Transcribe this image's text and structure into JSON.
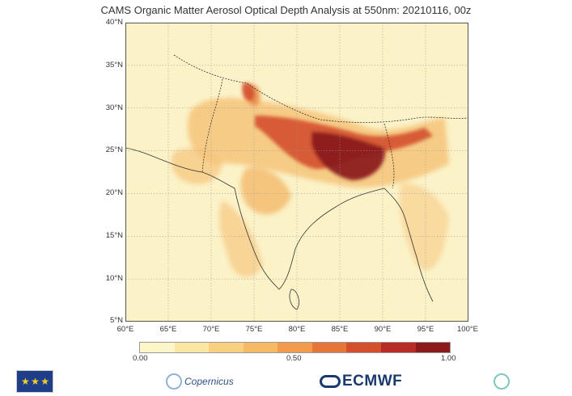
{
  "title": "CAMS Organic Matter Aerosol Optical Depth Analysis at 550nm: 20210116, 00z",
  "map": {
    "lat_labels": [
      "40°N",
      "35°N",
      "30°N",
      "25°N",
      "20°N",
      "15°N",
      "10°N",
      "5°N"
    ],
    "lon_labels": [
      "60°E",
      "65°E",
      "70°E",
      "75°E",
      "80°E",
      "85°E",
      "90°E",
      "95°E",
      "100°E"
    ],
    "lat_range": [
      5,
      40
    ],
    "lon_range": [
      60,
      100
    ],
    "background_color": "#fbf2c8",
    "grid": true
  },
  "colorbar": {
    "colors": [
      "#fdf6c8",
      "#fbe6a3",
      "#f9d07e",
      "#f6b964",
      "#f09c4c",
      "#e6753a",
      "#d4502c",
      "#b72c24",
      "#8b1a1a"
    ],
    "tick_labels": [
      "0.00",
      "0.50",
      "1.00"
    ],
    "range": [
      0,
      1
    ]
  },
  "logos": {
    "eu_symbol": "★ ★ ★",
    "copernicus": "Copernicus",
    "ecmwf": "ECMWF",
    "cams_icon": "cams-logo-icon"
  }
}
